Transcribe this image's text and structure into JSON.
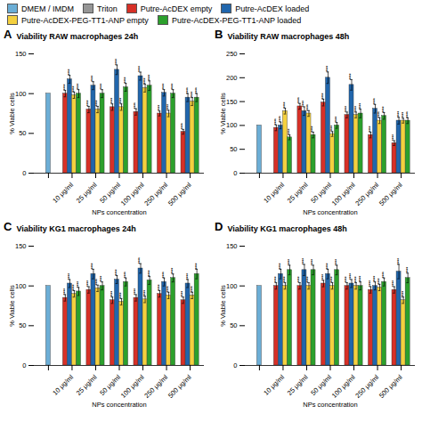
{
  "chart_data": [
    {
      "type": "bar",
      "label": "A",
      "title": "Viability RAW macrophages 24h",
      "xlabel": "NPs concentration",
      "ylabel": "% Viable cells",
      "categories": [
        null,
        "10 μg/ml",
        "25 μg/ml",
        "50 μg/ml",
        "100 μg/ml",
        "250 μg/ml",
        "500 μg/ml"
      ],
      "ylim": [
        0,
        150
      ],
      "yticks": [
        0,
        50,
        100,
        150
      ],
      "grid": false,
      "legend": "top",
      "series": [
        {
          "name": "DMEM / IMDM",
          "color": "#6baed6",
          "values": [
            100,
            null,
            null,
            null,
            null,
            null,
            null
          ]
        },
        {
          "name": "Triton",
          "color": "#969696",
          "values": [
            null,
            null,
            null,
            null,
            null,
            null,
            null
          ]
        },
        {
          "name": "Putre-AcDEX empty",
          "color": "#d73027",
          "values": [
            null,
            100,
            80,
            83,
            77,
            75,
            52
          ],
          "errors": [
            null,
            4,
            4,
            4,
            4,
            3,
            3
          ],
          "annotations": [
            null,
            "****",
            "****",
            "****",
            "****",
            "****",
            "****"
          ]
        },
        {
          "name": "Putre-AcDEX loaded",
          "color": "#2166ac",
          "values": [
            null,
            118,
            110,
            130,
            122,
            101,
            95
          ],
          "errors": [
            null,
            5,
            5,
            6,
            5,
            4,
            5
          ],
          "annotations": [
            null,
            "****",
            "****",
            "****",
            "****",
            "****",
            "****"
          ]
        },
        {
          "name": "Putre-AcDEX-PEG-TT1-ANP empty",
          "color": "#f4d03f",
          "values": [
            null,
            98,
            80,
            83,
            107,
            75,
            90
          ],
          "errors": [
            null,
            4,
            4,
            4,
            5,
            4,
            5
          ],
          "annotations": [
            null,
            "****",
            "****",
            "****",
            "****",
            "****",
            "****"
          ]
        },
        {
          "name": "Putre-AcDEX-PEG-TT1-ANP loaded",
          "color": "#2ca02c",
          "values": [
            null,
            100,
            100,
            108,
            110,
            100,
            95
          ],
          "errors": [
            null,
            5,
            5,
            5,
            6,
            5,
            5
          ],
          "annotations": [
            null,
            "****",
            "****",
            "****",
            "****",
            "****",
            "****"
          ]
        }
      ]
    },
    {
      "type": "bar",
      "label": "B",
      "title": "Viability RAW macrophages 48h",
      "xlabel": "NPs concentration",
      "ylabel": "% Viable cells",
      "categories": [
        null,
        "10 μg/ml",
        "25 μg/ml",
        "50 μg/ml",
        "100 μg/ml",
        "250 μg/ml",
        "500 μg/ml"
      ],
      "ylim": [
        0,
        250
      ],
      "yticks": [
        0,
        50,
        100,
        150,
        200,
        250
      ],
      "grid": false,
      "series": [
        {
          "name": "DMEM / IMDM",
          "color": "#6baed6",
          "values": [
            100,
            null,
            null,
            null,
            null,
            null,
            null
          ]
        },
        {
          "name": "Putre-AcDEX empty",
          "color": "#d73027",
          "values": [
            null,
            95,
            140,
            148,
            122,
            80,
            63
          ],
          "errors": [
            null,
            6,
            6,
            7,
            6,
            6,
            5
          ],
          "annotations": [
            null,
            "****",
            "****",
            "****",
            "****",
            "****",
            "****"
          ]
        },
        {
          "name": "Putre-AcDEX loaded",
          "color": "#2166ac",
          "values": [
            null,
            100,
            130,
            200,
            185,
            135,
            110
          ],
          "errors": [
            null,
            7,
            9,
            12,
            11,
            9,
            7
          ],
          "annotations": [
            null,
            "****",
            "****",
            "****",
            "****",
            "****",
            "****"
          ]
        },
        {
          "name": "Putre-AcDEX-PEG-TT1-ANP empty",
          "color": "#f4d03f",
          "values": [
            null,
            130,
            125,
            82,
            122,
            110,
            110
          ],
          "errors": [
            null,
            6,
            6,
            5,
            6,
            6,
            5
          ],
          "annotations": [
            null,
            "****",
            "****",
            "****",
            "****",
            "****",
            "****"
          ]
        },
        {
          "name": "Putre-AcDEX-PEG-TT1-ANP loaded",
          "color": "#2ca02c",
          "values": [
            null,
            75,
            80,
            100,
            125,
            120,
            110
          ],
          "errors": [
            null,
            5,
            6,
            6,
            9,
            7,
            6
          ],
          "annotations": [
            null,
            "****",
            "****",
            "****",
            "****",
            "****",
            "****"
          ]
        }
      ]
    },
    {
      "type": "bar",
      "label": "C",
      "title": "Viability KG1 macrophages 24h",
      "xlabel": "NPs concentration",
      "ylabel": "% Viable cells",
      "categories": [
        null,
        "10 μg/ml",
        "25 μg/ml",
        "50 μg/ml",
        "100 μg/ml",
        "250 μg/ml",
        "500 μg/ml"
      ],
      "ylim": [
        0,
        150
      ],
      "yticks": [
        0,
        50,
        100,
        150
      ],
      "grid": false,
      "series": [
        {
          "name": "DMEM / IMDM",
          "color": "#6baed6",
          "values": [
            100,
            null,
            null,
            null,
            null,
            null,
            null
          ]
        },
        {
          "name": "Putre-AcDEX empty",
          "color": "#d73027",
          "values": [
            null,
            85,
            95,
            82,
            85,
            90,
            82
          ],
          "errors": [
            null,
            4,
            4,
            4,
            4,
            4,
            4
          ],
          "annotations": [
            null,
            "****",
            "****",
            "****",
            "****",
            "****",
            "****"
          ]
        },
        {
          "name": "Putre-AcDEX loaded",
          "color": "#2166ac",
          "values": [
            null,
            103,
            115,
            108,
            122,
            105,
            103
          ],
          "errors": [
            null,
            5,
            6,
            5,
            6,
            5,
            5
          ],
          "annotations": [
            null,
            "****",
            "****",
            "****",
            "****",
            "****",
            "****"
          ]
        },
        {
          "name": "Putre-AcDEX-PEG-TT1-ANP empty",
          "color": "#f4d03f",
          "values": [
            null,
            90,
            97,
            80,
            83,
            88,
            88
          ],
          "errors": [
            null,
            4,
            4,
            4,
            4,
            4,
            4
          ],
          "annotations": [
            null,
            "****",
            "****",
            "****",
            "****",
            "****",
            "****"
          ]
        },
        {
          "name": "Putre-AcDEX-PEG-TT1-ANP loaded",
          "color": "#2ca02c",
          "values": [
            null,
            93,
            100,
            105,
            107,
            110,
            115
          ],
          "errors": [
            null,
            5,
            5,
            5,
            5,
            5,
            6
          ],
          "annotations": [
            null,
            "****",
            "****",
            "****",
            "****",
            "****",
            "****"
          ]
        }
      ]
    },
    {
      "type": "bar",
      "label": "D",
      "title": "Viability KG1 macrophages 48h",
      "xlabel": "NPs concentration",
      "ylabel": "% Viable cells",
      "categories": [
        null,
        "10 μg/ml",
        "25 μg/ml",
        "50 μg/ml",
        "100 μg/ml",
        "250 μg/ml",
        "500 μg/ml"
      ],
      "ylim": [
        0,
        150
      ],
      "yticks": [
        0,
        50,
        100,
        150
      ],
      "grid": false,
      "series": [
        {
          "name": "DMEM / IMDM",
          "color": "#6baed6",
          "values": [
            100,
            null,
            null,
            null,
            null,
            null,
            null
          ]
        },
        {
          "name": "Putre-AcDEX empty",
          "color": "#d73027",
          "values": [
            null,
            100,
            100,
            103,
            100,
            95,
            95
          ],
          "errors": [
            null,
            4,
            4,
            4,
            4,
            4,
            4
          ],
          "annotations": [
            null,
            "****",
            "****",
            "****",
            "****",
            "****",
            "****"
          ]
        },
        {
          "name": "Putre-AcDEX loaded",
          "color": "#2166ac",
          "values": [
            null,
            115,
            120,
            115,
            103,
            100,
            118
          ],
          "errors": [
            null,
            6,
            7,
            6,
            5,
            5,
            9
          ],
          "annotations": [
            null,
            "****",
            "****",
            "****",
            "****",
            "****",
            "****"
          ]
        },
        {
          "name": "Putre-AcDEX-PEG-TT1-ANP empty",
          "color": "#f4d03f",
          "values": [
            null,
            100,
            100,
            100,
            100,
            98,
            82
          ],
          "errors": [
            null,
            4,
            4,
            4,
            4,
            4,
            4
          ],
          "annotations": [
            null,
            "****",
            "****",
            "****",
            "****",
            "****",
            "****"
          ]
        },
        {
          "name": "Putre-AcDEX-PEG-TT1-ANP loaded",
          "color": "#2ca02c",
          "values": [
            null,
            120,
            120,
            120,
            100,
            105,
            110
          ],
          "errors": [
            null,
            6,
            6,
            6,
            5,
            5,
            6
          ],
          "annotations": [
            null,
            "****",
            "****",
            "****",
            "****",
            "****",
            "****"
          ]
        }
      ]
    }
  ]
}
